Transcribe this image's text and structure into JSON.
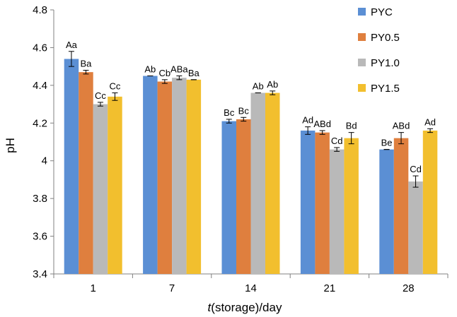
{
  "chart_data": {
    "type": "bar",
    "title": "",
    "xlabel_italic": "t",
    "xlabel_rest": "(storage)/day",
    "ylabel": "pH",
    "ylim": [
      3.4,
      4.8
    ],
    "yticks": [
      "3.4",
      "3.6",
      "3.8",
      "4",
      "4.2",
      "4.4",
      "4.6",
      "4.8"
    ],
    "categories": [
      "1",
      "7",
      "14",
      "21",
      "28"
    ],
    "legend_position": "top-right",
    "series": [
      {
        "name": "PYC",
        "color": "#5B8FD4",
        "values": [
          4.54,
          4.45,
          4.21,
          4.16,
          4.06
        ],
        "errors": [
          0.04,
          0.0,
          0.01,
          0.02,
          0.0
        ],
        "labels": [
          "Aa",
          "Ab",
          "Bc",
          "Ad",
          "Be"
        ]
      },
      {
        "name": "PY0.5",
        "color": "#DF7F3E",
        "values": [
          4.47,
          4.42,
          4.22,
          4.15,
          4.12
        ],
        "errors": [
          0.01,
          0.01,
          0.01,
          0.01,
          0.03
        ],
        "labels": [
          "Ba",
          "Cb",
          "Bc",
          "ABd",
          "ABd"
        ]
      },
      {
        "name": "PY1.0",
        "color": "#B9B9B9",
        "values": [
          4.3,
          4.44,
          4.36,
          4.06,
          3.89
        ],
        "errors": [
          0.01,
          0.01,
          0.0,
          0.01,
          0.03
        ],
        "labels": [
          "Cc",
          "ABa",
          "Ab",
          "Cd",
          "Cd"
        ]
      },
      {
        "name": "PY1.5",
        "color": "#F2BF2E",
        "values": [
          4.34,
          4.43,
          4.36,
          4.12,
          4.16
        ],
        "errors": [
          0.02,
          0.0,
          0.01,
          0.03,
          0.01
        ],
        "labels": [
          "Cc",
          "Ba",
          "Ab",
          "Bd",
          "Ad"
        ]
      }
    ]
  }
}
